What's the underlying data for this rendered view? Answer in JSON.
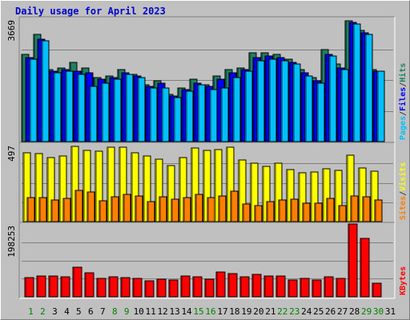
{
  "title": "Daily usage for April 2023",
  "chart_data": [
    {
      "panel": "pages-files-hits",
      "type": "bar",
      "ymax_label": "3669",
      "ylim": [
        0,
        3669
      ],
      "legend": [
        {
          "text": "Pages",
          "color": "#00c0ff"
        },
        {
          "text": "/",
          "color": "#404040"
        },
        {
          "text": "Files",
          "color": "#0000ff"
        },
        {
          "text": "/",
          "color": "#404040"
        },
        {
          "text": "Hits",
          "color": "#208060"
        }
      ],
      "categories": [
        "1",
        "2",
        "3",
        "4",
        "5",
        "6",
        "7",
        "8",
        "9",
        "10",
        "11",
        "12",
        "13",
        "14",
        "15",
        "16",
        "17",
        "18",
        "19",
        "20",
        "21",
        "22",
        "23",
        "24",
        "25",
        "26",
        "27",
        "28",
        "29",
        "30",
        "31"
      ],
      "series": [
        {
          "name": "Hits",
          "color": "#208060",
          "values": [
            2600,
            3200,
            2150,
            2200,
            2350,
            2200,
            1900,
            1950,
            2150,
            2000,
            1700,
            1800,
            1400,
            1600,
            1850,
            1700,
            1950,
            2150,
            2200,
            2650,
            2650,
            2600,
            2450,
            2150,
            1900,
            2750,
            2300,
            3600,
            3300,
            2150,
            0
          ]
        },
        {
          "name": "Files",
          "color": "#0000ff",
          "values": [
            2500,
            3050,
            2100,
            2150,
            2100,
            2050,
            1850,
            1900,
            2050,
            1950,
            1650,
            1750,
            1350,
            1550,
            1750,
            1650,
            1850,
            2050,
            2150,
            2500,
            2550,
            2500,
            2350,
            2050,
            1800,
            2600,
            2200,
            3550,
            3250,
            2100,
            0
          ]
        },
        {
          "name": "Pages",
          "color": "#00c0ff",
          "values": [
            2450,
            3000,
            2050,
            2100,
            2000,
            1650,
            1750,
            1850,
            2000,
            1900,
            1600,
            1600,
            1300,
            1500,
            1700,
            1550,
            1600,
            1900,
            2100,
            2400,
            2450,
            2400,
            2300,
            1950,
            1750,
            2550,
            2150,
            3500,
            3200,
            2100,
            0
          ]
        }
      ]
    },
    {
      "panel": "visits-sites",
      "type": "bar",
      "ymax_label": "497",
      "ylim": [
        0,
        497
      ],
      "legend": [
        {
          "text": "Sites",
          "color": "#ff8000"
        },
        {
          "text": "/",
          "color": "#404040"
        },
        {
          "text": "Visits",
          "color": "#ffff00"
        }
      ],
      "categories": [
        "1",
        "2",
        "3",
        "4",
        "5",
        "6",
        "7",
        "8",
        "9",
        "10",
        "11",
        "12",
        "13",
        "14",
        "15",
        "16",
        "17",
        "18",
        "19",
        "20",
        "21",
        "22",
        "23",
        "24",
        "25",
        "26",
        "27",
        "28",
        "29",
        "30",
        "31"
      ],
      "series": [
        {
          "name": "Visits",
          "color": "#ffff00",
          "values": [
            440,
            435,
            410,
            420,
            480,
            455,
            450,
            475,
            475,
            440,
            420,
            400,
            360,
            410,
            470,
            455,
            460,
            475,
            395,
            375,
            355,
            375,
            335,
            315,
            320,
            340,
            330,
            425,
            345,
            325,
            0
          ]
        },
        {
          "name": "Sites",
          "color": "#ff8000",
          "values": [
            155,
            155,
            140,
            150,
            200,
            190,
            135,
            160,
            175,
            165,
            130,
            160,
            145,
            155,
            175,
            155,
            165,
            195,
            115,
            105,
            130,
            140,
            145,
            120,
            120,
            150,
            105,
            165,
            160,
            140,
            0
          ]
        }
      ]
    },
    {
      "panel": "kbytes",
      "type": "bar",
      "ymax_label": "198253",
      "ylim": [
        0,
        198253
      ],
      "legend": [
        {
          "text": "KBytes",
          "color": "#ff0000"
        }
      ],
      "categories": [
        "1",
        "2",
        "3",
        "4",
        "5",
        "6",
        "7",
        "8",
        "9",
        "10",
        "11",
        "12",
        "13",
        "14",
        "15",
        "16",
        "17",
        "18",
        "19",
        "20",
        "21",
        "22",
        "23",
        "24",
        "25",
        "26",
        "27",
        "28",
        "29",
        "30",
        "31"
      ],
      "series": [
        {
          "name": "KBytes",
          "color": "#ff0000",
          "values": [
            52000,
            57000,
            57000,
            55000,
            80000,
            66000,
            50000,
            54000,
            52000,
            51000,
            44000,
            49000,
            45000,
            56000,
            54000,
            48000,
            67000,
            64000,
            55000,
            61000,
            56000,
            57000,
            46000,
            50000,
            45000,
            54000,
            50000,
            198253,
            160000,
            37000,
            0
          ]
        }
      ]
    }
  ],
  "x_labels": [
    {
      "text": "1",
      "color": "#008000"
    },
    {
      "text": "2",
      "color": "#008000"
    },
    {
      "text": "3",
      "color": "#000000"
    },
    {
      "text": "4",
      "color": "#000000"
    },
    {
      "text": "5",
      "color": "#000000"
    },
    {
      "text": "6",
      "color": "#000000"
    },
    {
      "text": "7",
      "color": "#000000"
    },
    {
      "text": "8",
      "color": "#008000"
    },
    {
      "text": "9",
      "color": "#008000"
    },
    {
      "text": "10",
      "color": "#000000"
    },
    {
      "text": "11",
      "color": "#000000"
    },
    {
      "text": "12",
      "color": "#000000"
    },
    {
      "text": "13",
      "color": "#000000"
    },
    {
      "text": "14",
      "color": "#000000"
    },
    {
      "text": "15",
      "color": "#008000"
    },
    {
      "text": "16",
      "color": "#008000"
    },
    {
      "text": "17",
      "color": "#000000"
    },
    {
      "text": "18",
      "color": "#000000"
    },
    {
      "text": "19",
      "color": "#000000"
    },
    {
      "text": "20",
      "color": "#000000"
    },
    {
      "text": "21",
      "color": "#000000"
    },
    {
      "text": "22",
      "color": "#008000"
    },
    {
      "text": "23",
      "color": "#008000"
    },
    {
      "text": "24",
      "color": "#000000"
    },
    {
      "text": "25",
      "color": "#000000"
    },
    {
      "text": "26",
      "color": "#000000"
    },
    {
      "text": "27",
      "color": "#000000"
    },
    {
      "text": "28",
      "color": "#000000"
    },
    {
      "text": "29",
      "color": "#008000"
    },
    {
      "text": "30",
      "color": "#008000"
    },
    {
      "text": "31",
      "color": "#000000"
    }
  ]
}
